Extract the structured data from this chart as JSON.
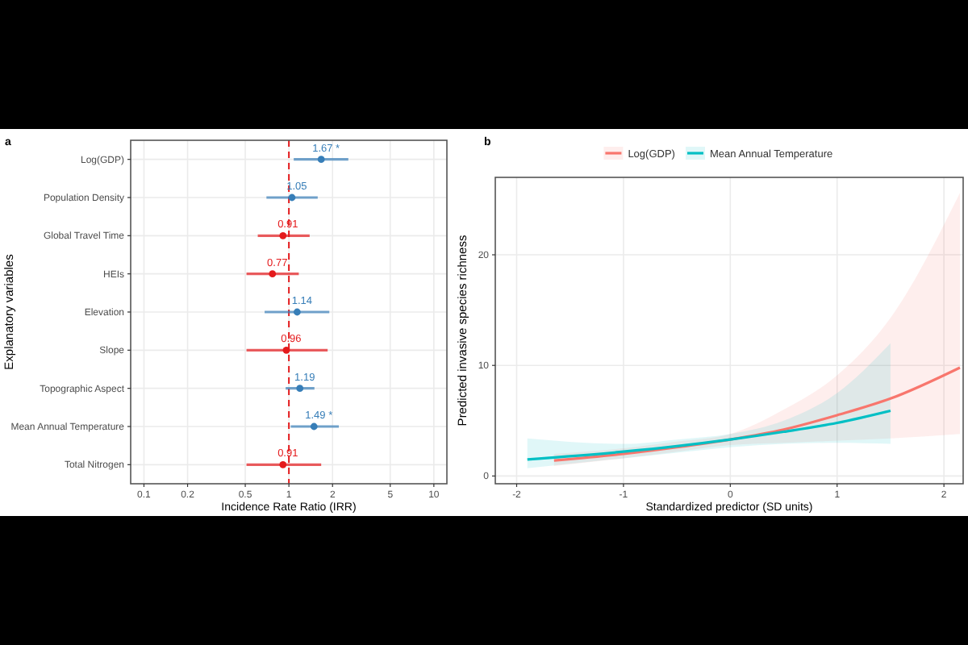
{
  "chart_data": [
    {
      "type": "scatter",
      "title": "a",
      "xlabel": "Incidence Rate Ratio (IRR)",
      "ylabel": "Explanatory variables",
      "orientation": "horizontal",
      "log": "x",
      "categories": [
        "Log(GDP)",
        "Population Density",
        "Global Travel Time",
        "HEIs",
        "Elevation",
        "Slope",
        "Topographic Aspect",
        "Mean Annual Temperature",
        "Total Nitrogen"
      ],
      "values": [
        1.67,
        1.05,
        0.91,
        0.77,
        1.14,
        0.96,
        1.19,
        1.49,
        0.91
      ],
      "errors": [
        [
          1.08,
          2.57
        ],
        [
          0.7,
          1.58
        ],
        [
          0.61,
          1.39
        ],
        [
          0.51,
          1.17
        ],
        [
          0.68,
          1.9
        ],
        [
          0.51,
          1.85
        ],
        [
          0.95,
          1.5
        ],
        [
          1.03,
          2.21
        ],
        [
          0.51,
          1.67
        ]
      ],
      "colors": [
        "#377eb8",
        "#377eb8",
        "#e41a1c",
        "#e41a1c",
        "#377eb8",
        "#e41a1c",
        "#377eb8",
        "#377eb8",
        "#e41a1c"
      ],
      "value_labels": [
        "1.67 *",
        "1.05",
        "0.91",
        "0.77",
        "1.14",
        "0.96",
        "1.19",
        "1.49 *",
        "0.91"
      ],
      "xlim": [
        0.081,
        12.3
      ],
      "xticks": [
        0.1,
        0.2,
        0.5,
        1,
        2,
        5,
        10
      ],
      "grid": true,
      "marker": "circle",
      "ref_lines": [
        {
          "axis": "x",
          "value": 1,
          "color": "#e41a1c",
          "line_style": "dashed"
        }
      ]
    },
    {
      "type": "line",
      "title": "b",
      "xlabel": "Standardized predictor (SD units)",
      "ylabel": "Predicted invasive species richness",
      "legend": "top",
      "grid": true,
      "xlim": [
        -2.2,
        2.18
      ],
      "xticks": [
        -2,
        -1,
        0,
        1,
        2
      ],
      "ylim": [
        -0.7,
        27
      ],
      "yticks": [
        0,
        10,
        20
      ],
      "series": [
        {
          "name": "Log(GDP)",
          "color": "#f8766d",
          "x": [
            -1.65,
            -1,
            -0.5,
            0,
            0.5,
            1,
            1.5,
            2.15
          ],
          "values": [
            1.4,
            2.0,
            2.6,
            3.3,
            4.2,
            5.5,
            7.0,
            9.8
          ],
          "lower": [
            0.9,
            1.6,
            2.2,
            2.8,
            3.0,
            3.2,
            3.4,
            3.8
          ],
          "upper": [
            2.0,
            2.5,
            3.1,
            3.8,
            6.0,
            9.1,
            14.3,
            25.6
          ]
        },
        {
          "name": "Mean Annual Temperature",
          "color": "#00bfc4",
          "x": [
            -1.9,
            -1,
            -0.5,
            0,
            0.5,
            1,
            1.5
          ],
          "values": [
            1.5,
            2.2,
            2.7,
            3.3,
            4.0,
            4.8,
            5.9
          ],
          "lower": [
            0.7,
            1.6,
            2.1,
            2.6,
            2.9,
            3.0,
            2.9
          ],
          "upper": [
            3.4,
            2.9,
            3.3,
            3.8,
            5.0,
            7.5,
            12.0
          ]
        }
      ]
    }
  ]
}
